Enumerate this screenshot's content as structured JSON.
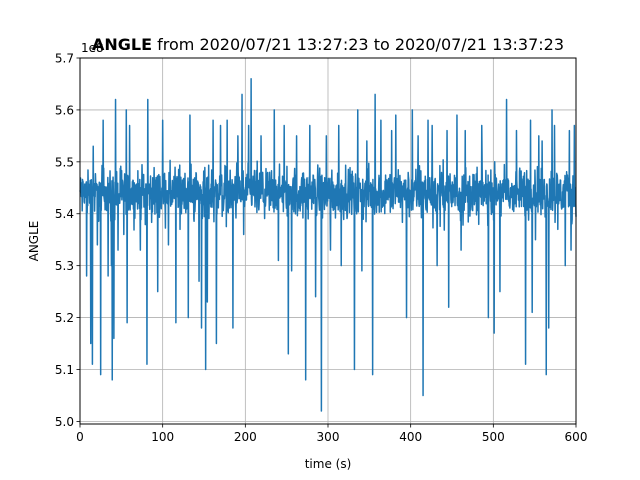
{
  "chart_data": {
    "type": "line",
    "title_bold": "ANGLE",
    "title_rest": " from 2020/07/21 13:27:23 to 2020/07/21 13:37:23",
    "xlabel": "time (s)",
    "ylabel": "ANGLE",
    "offset_label": "1e8",
    "xlim": [
      0,
      600
    ],
    "ylim": [
      4.995,
      5.7
    ],
    "xticks": [
      "0",
      "100",
      "200",
      "300",
      "400",
      "500",
      "600"
    ],
    "yticks": [
      "5.0",
      "5.1",
      "5.2",
      "5.3",
      "5.4",
      "5.5",
      "5.6",
      "5.7"
    ],
    "grid": true,
    "series": [
      {
        "color": "#1f77b4",
        "baseline": 5.44,
        "noise_band": [
          5.36,
          5.52
        ],
        "spikes": [
          {
            "x": 8,
            "y": 5.28
          },
          {
            "x": 13,
            "y": 5.15
          },
          {
            "x": 15,
            "y": 5.11
          },
          {
            "x": 16,
            "y": 5.53
          },
          {
            "x": 21,
            "y": 5.34
          },
          {
            "x": 25,
            "y": 5.09
          },
          {
            "x": 28,
            "y": 5.58
          },
          {
            "x": 34,
            "y": 5.28
          },
          {
            "x": 38,
            "y": 5.3
          },
          {
            "x": 39,
            "y": 5.08
          },
          {
            "x": 41,
            "y": 5.16
          },
          {
            "x": 43,
            "y": 5.62
          },
          {
            "x": 46,
            "y": 5.33
          },
          {
            "x": 53,
            "y": 5.36
          },
          {
            "x": 56,
            "y": 5.6
          },
          {
            "x": 57,
            "y": 5.19
          },
          {
            "x": 60,
            "y": 5.57
          },
          {
            "x": 73,
            "y": 5.33
          },
          {
            "x": 81,
            "y": 5.11
          },
          {
            "x": 82,
            "y": 5.62
          },
          {
            "x": 94,
            "y": 5.25
          },
          {
            "x": 100,
            "y": 5.58
          },
          {
            "x": 107,
            "y": 5.34
          },
          {
            "x": 116,
            "y": 5.19
          },
          {
            "x": 121,
            "y": 5.37
          },
          {
            "x": 131,
            "y": 5.2
          },
          {
            "x": 133,
            "y": 5.59
          },
          {
            "x": 144,
            "y": 5.27
          },
          {
            "x": 147,
            "y": 5.18
          },
          {
            "x": 152,
            "y": 5.1
          },
          {
            "x": 154,
            "y": 5.23
          },
          {
            "x": 161,
            "y": 5.58
          },
          {
            "x": 165,
            "y": 5.15
          },
          {
            "x": 170,
            "y": 5.57
          },
          {
            "x": 178,
            "y": 5.58
          },
          {
            "x": 185,
            "y": 5.18
          },
          {
            "x": 191,
            "y": 5.55
          },
          {
            "x": 196,
            "y": 5.63
          },
          {
            "x": 198,
            "y": 5.36
          },
          {
            "x": 204,
            "y": 5.57
          },
          {
            "x": 207,
            "y": 5.66
          },
          {
            "x": 219,
            "y": 5.55
          },
          {
            "x": 235,
            "y": 5.6
          },
          {
            "x": 240,
            "y": 5.31
          },
          {
            "x": 247,
            "y": 5.57
          },
          {
            "x": 252,
            "y": 5.13
          },
          {
            "x": 256,
            "y": 5.29
          },
          {
            "x": 262,
            "y": 5.55
          },
          {
            "x": 273,
            "y": 5.08
          },
          {
            "x": 278,
            "y": 5.57
          },
          {
            "x": 285,
            "y": 5.24
          },
          {
            "x": 292,
            "y": 5.02
          },
          {
            "x": 298,
            "y": 5.55
          },
          {
            "x": 303,
            "y": 5.33
          },
          {
            "x": 313,
            "y": 5.57
          },
          {
            "x": 316,
            "y": 5.3
          },
          {
            "x": 332,
            "y": 5.1
          },
          {
            "x": 336,
            "y": 5.6
          },
          {
            "x": 341,
            "y": 5.29
          },
          {
            "x": 347,
            "y": 5.54
          },
          {
            "x": 354,
            "y": 5.09
          },
          {
            "x": 357,
            "y": 5.63
          },
          {
            "x": 364,
            "y": 5.58
          },
          {
            "x": 377,
            "y": 5.56
          },
          {
            "x": 382,
            "y": 5.59
          },
          {
            "x": 395,
            "y": 5.2
          },
          {
            "x": 402,
            "y": 5.6
          },
          {
            "x": 409,
            "y": 5.55
          },
          {
            "x": 415,
            "y": 5.05
          },
          {
            "x": 421,
            "y": 5.58
          },
          {
            "x": 426,
            "y": 5.57
          },
          {
            "x": 432,
            "y": 5.3
          },
          {
            "x": 444,
            "y": 5.56
          },
          {
            "x": 446,
            "y": 5.22
          },
          {
            "x": 456,
            "y": 5.59
          },
          {
            "x": 461,
            "y": 5.33
          },
          {
            "x": 466,
            "y": 5.56
          },
          {
            "x": 486,
            "y": 5.57
          },
          {
            "x": 494,
            "y": 5.2
          },
          {
            "x": 501,
            "y": 5.17
          },
          {
            "x": 508,
            "y": 5.25
          },
          {
            "x": 516,
            "y": 5.62
          },
          {
            "x": 528,
            "y": 5.56
          },
          {
            "x": 539,
            "y": 5.11
          },
          {
            "x": 545,
            "y": 5.58
          },
          {
            "x": 547,
            "y": 5.21
          },
          {
            "x": 551,
            "y": 5.35
          },
          {
            "x": 555,
            "y": 5.55
          },
          {
            "x": 559,
            "y": 5.54
          },
          {
            "x": 564,
            "y": 5.09
          },
          {
            "x": 567,
            "y": 5.18
          },
          {
            "x": 571,
            "y": 5.6
          },
          {
            "x": 574,
            "y": 5.57
          },
          {
            "x": 578,
            "y": 5.37
          },
          {
            "x": 587,
            "y": 5.3
          },
          {
            "x": 592,
            "y": 5.56
          },
          {
            "x": 594,
            "y": 5.33
          },
          {
            "x": 598,
            "y": 5.57
          }
        ]
      }
    ]
  }
}
